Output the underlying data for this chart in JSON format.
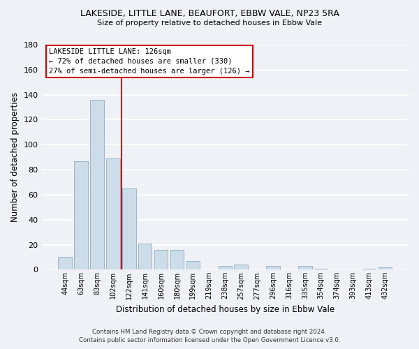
{
  "title": "LAKESIDE, LITTLE LANE, BEAUFORT, EBBW VALE, NP23 5RA",
  "subtitle": "Size of property relative to detached houses in Ebbw Vale",
  "xlabel": "Distribution of detached houses by size in Ebbw Vale",
  "ylabel": "Number of detached properties",
  "bar_color": "#ccdce8",
  "bar_edge_color": "#9ab4c8",
  "categories": [
    "44sqm",
    "63sqm",
    "83sqm",
    "102sqm",
    "122sqm",
    "141sqm",
    "160sqm",
    "180sqm",
    "199sqm",
    "219sqm",
    "238sqm",
    "257sqm",
    "277sqm",
    "296sqm",
    "316sqm",
    "335sqm",
    "354sqm",
    "374sqm",
    "393sqm",
    "413sqm",
    "432sqm"
  ],
  "values": [
    10,
    87,
    136,
    89,
    65,
    21,
    16,
    16,
    7,
    0,
    3,
    4,
    0,
    3,
    0,
    3,
    1,
    0,
    0,
    1,
    2
  ],
  "ylim": [
    0,
    180
  ],
  "yticks": [
    0,
    20,
    40,
    60,
    80,
    100,
    120,
    140,
    160,
    180
  ],
  "property_line_label": "LAKESIDE LITTLE LANE: 126sqm",
  "annotation_line1": "← 72% of detached houses are smaller (330)",
  "annotation_line2": "27% of semi-detached houses are larger (126) →",
  "footer_line1": "Contains HM Land Registry data © Crown copyright and database right 2024.",
  "footer_line2": "Contains public sector information licensed under the Open Government Licence v3.0.",
  "background_color": "#eef2f7",
  "grid_color": "white",
  "annotation_box_color": "white",
  "annotation_box_edge_color": "#cc0000",
  "property_line_color": "#cc0000",
  "property_line_x": 3.55
}
